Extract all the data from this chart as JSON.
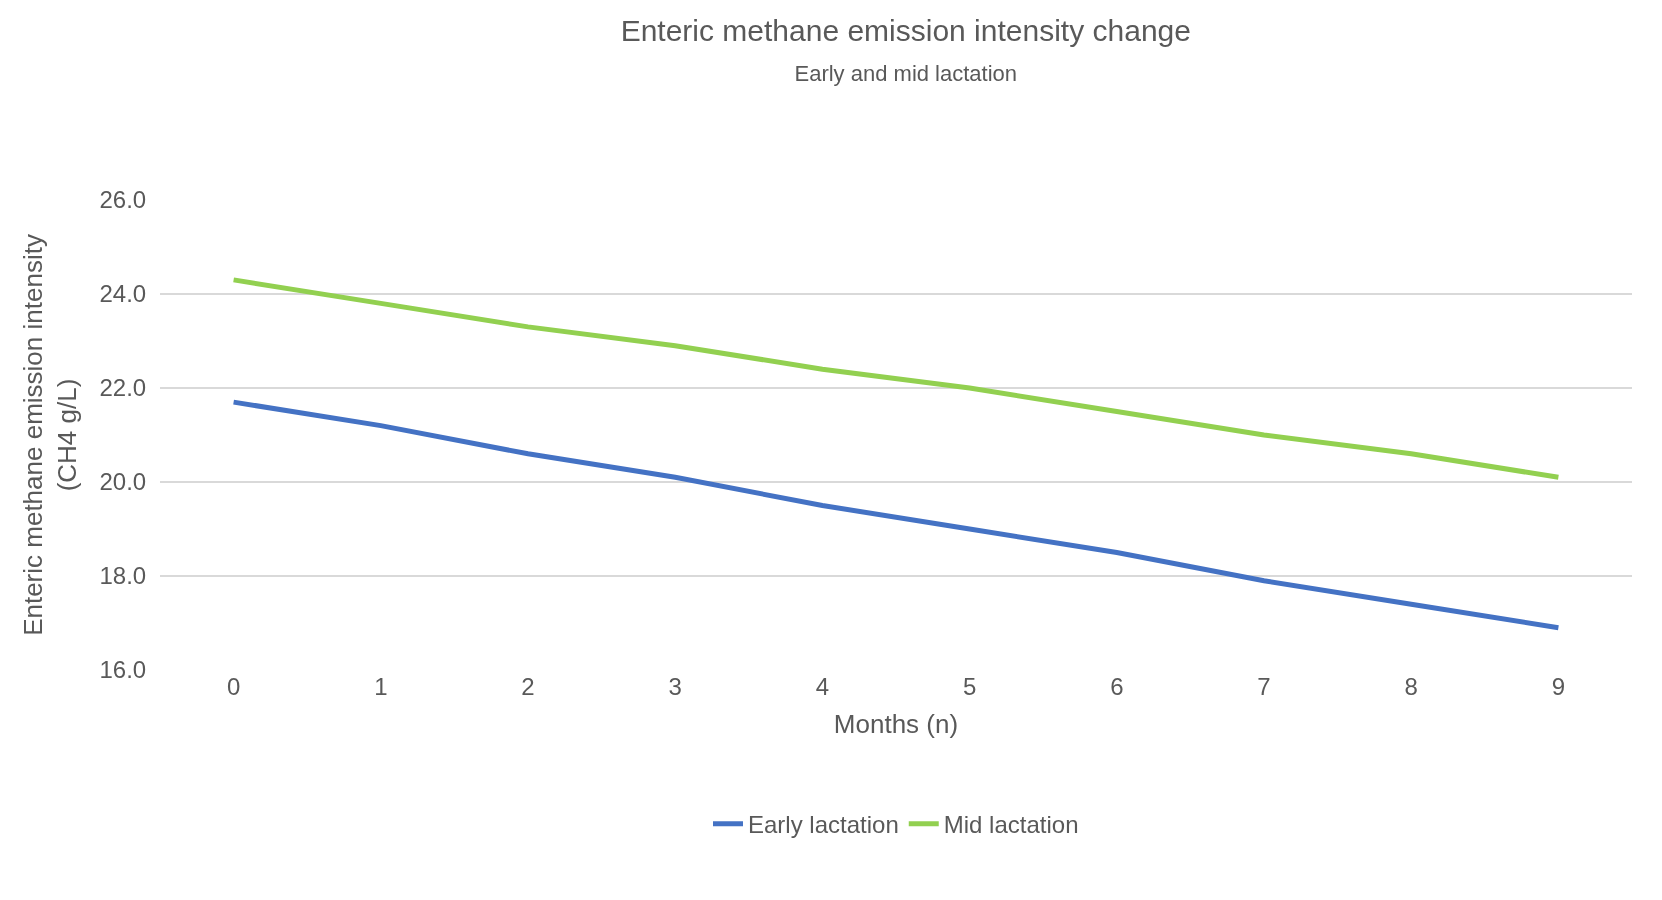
{
  "chart_data": {
    "type": "line",
    "title": "Enteric methane emission intensity change",
    "subtitle": "Early and mid lactation",
    "xlabel": "Months (n)",
    "ylabel": "Enteric methane emission intensity\n(CH4 g/L)",
    "categories": [
      "0",
      "1",
      "2",
      "3",
      "4",
      "5",
      "6",
      "7",
      "8",
      "9"
    ],
    "series": [
      {
        "name": "Early lactation",
        "color": "#4472c4",
        "values": [
          21.7,
          21.2,
          20.6,
          20.1,
          19.5,
          19.0,
          18.5,
          17.9,
          17.4,
          16.9
        ]
      },
      {
        "name": "Mid lactation",
        "color": "#92d050",
        "values": [
          24.3,
          23.8,
          23.3,
          22.9,
          22.4,
          22.0,
          21.5,
          21.0,
          20.6,
          20.1
        ]
      }
    ],
    "ylim": [
      16,
      26
    ],
    "yticks": [
      {
        "value": 16,
        "label": "16.0"
      },
      {
        "value": 18,
        "label": "18.0"
      },
      {
        "value": 20,
        "label": "20.0"
      },
      {
        "value": 22,
        "label": "22.0"
      },
      {
        "value": 24,
        "label": "24.0"
      },
      {
        "value": 26,
        "label": "26.0"
      }
    ],
    "grid": "y",
    "legend": "bottom",
    "marker": "none",
    "line_style": "solid"
  }
}
